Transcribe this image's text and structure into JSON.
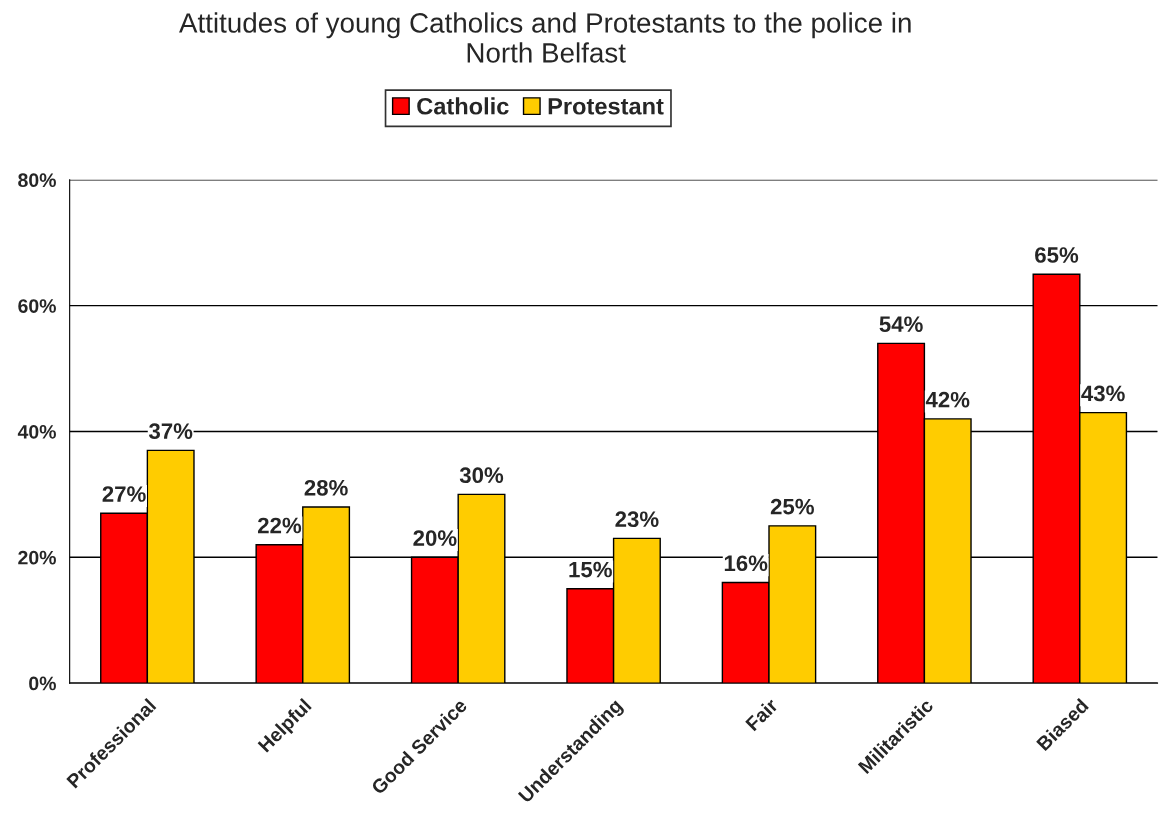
{
  "chart_data": {
    "type": "bar",
    "title": "Attitudes of young Catholics and Protestants to the police in\nNorth Belfast",
    "categories": [
      "Professional",
      "Helpful",
      "Good Service",
      "Understanding",
      "Fair",
      "Militaristic",
      "Biased"
    ],
    "series": [
      {
        "name": "Catholic",
        "color": "#ff0000",
        "values": [
          27,
          22,
          20,
          15,
          16,
          54,
          65
        ],
        "value_labels": [
          "27%",
          "22%",
          "20%",
          "15%",
          "16%",
          "54%",
          "65%"
        ]
      },
      {
        "name": "Protestant",
        "color": "#ffcc00",
        "values": [
          37,
          28,
          30,
          23,
          25,
          42,
          43
        ],
        "value_labels": [
          "37%",
          "28%",
          "30%",
          "23%",
          "25%",
          "42%",
          "43%"
        ]
      }
    ],
    "ylim": [
      0,
      80
    ],
    "yticks": [
      {
        "value": 0,
        "label": "0%"
      },
      {
        "value": 20,
        "label": "20%"
      },
      {
        "value": 40,
        "label": "40%"
      },
      {
        "value": 60,
        "label": "60%"
      },
      {
        "value": 80,
        "label": "80%"
      }
    ],
    "grid": "y",
    "legend": "top"
  }
}
